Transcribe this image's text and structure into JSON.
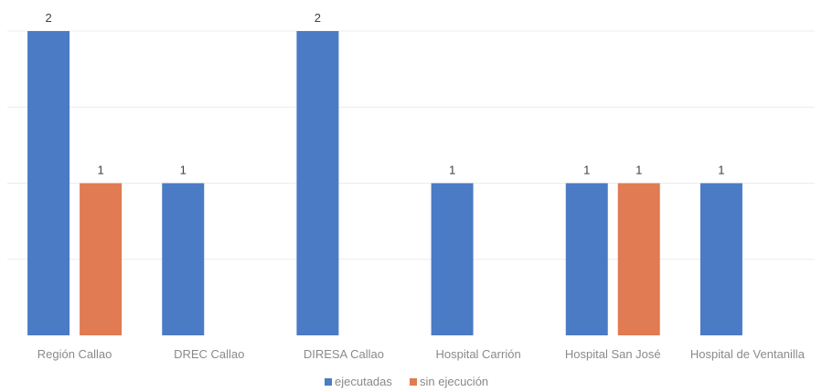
{
  "chart_data": {
    "type": "bar",
    "title": "",
    "xlabel": "",
    "ylabel": "",
    "categories": [
      "Región Callao",
      "DREC Callao",
      "DIRESA Callao",
      "Hospital Carrión",
      "Hospital San José",
      "Hospital de Ventanilla"
    ],
    "series": [
      {
        "name": "ejecutadas",
        "color": "#4a7bc4",
        "values": [
          2,
          1,
          2,
          1,
          1,
          1
        ]
      },
      {
        "name": "sin ejecución",
        "color": "#e07b53",
        "values": [
          1,
          null,
          null,
          null,
          1,
          null
        ]
      }
    ],
    "ylim": [
      0,
      2
    ],
    "grid": true,
    "legend": "bottom",
    "data_labels": true
  }
}
